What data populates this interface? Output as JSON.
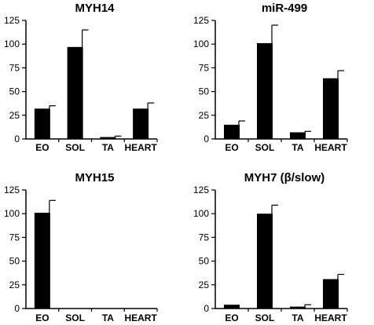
{
  "chart_data": [
    {
      "type": "bar",
      "title": "MYH14",
      "categories": [
        "EO",
        "SOL",
        "TA",
        "HEART"
      ],
      "values": [
        32,
        97,
        2,
        32
      ],
      "errors": [
        3,
        18,
        1,
        6
      ],
      "xlabel": "",
      "ylabel": "",
      "ylim": [
        0,
        125
      ],
      "yticks": [
        0,
        25,
        50,
        75,
        100,
        125
      ],
      "grid": false,
      "bar_color": "#000000"
    },
    {
      "type": "bar",
      "title": "miR-499",
      "categories": [
        "EO",
        "SOL",
        "TA",
        "HEART"
      ],
      "values": [
        15,
        101,
        7,
        64
      ],
      "errors": [
        4,
        19,
        1,
        8
      ],
      "xlabel": "",
      "ylabel": "",
      "ylim": [
        0,
        125
      ],
      "yticks": [
        0,
        25,
        50,
        75,
        100,
        125
      ],
      "grid": false,
      "bar_color": "#000000"
    },
    {
      "type": "bar",
      "title": "MYH15",
      "categories": [
        "EO",
        "SOL",
        "TA",
        "HEART"
      ],
      "values": [
        101,
        0,
        0,
        0
      ],
      "errors": [
        13,
        0,
        0,
        0
      ],
      "xlabel": "",
      "ylabel": "",
      "ylim": [
        0,
        125
      ],
      "yticks": [
        0,
        25,
        50,
        75,
        100,
        125
      ],
      "grid": false,
      "bar_color": "#000000"
    },
    {
      "type": "bar",
      "title": "MYH7 (β/slow)",
      "categories": [
        "EO",
        "SOL",
        "TA",
        "HEART"
      ],
      "values": [
        4,
        100,
        2,
        31
      ],
      "errors": [
        0,
        9,
        2,
        5
      ],
      "xlabel": "",
      "ylabel": "",
      "ylim": [
        0,
        125
      ],
      "yticks": [
        0,
        25,
        50,
        75,
        100,
        125
      ],
      "grid": false,
      "bar_color": "#000000"
    }
  ]
}
